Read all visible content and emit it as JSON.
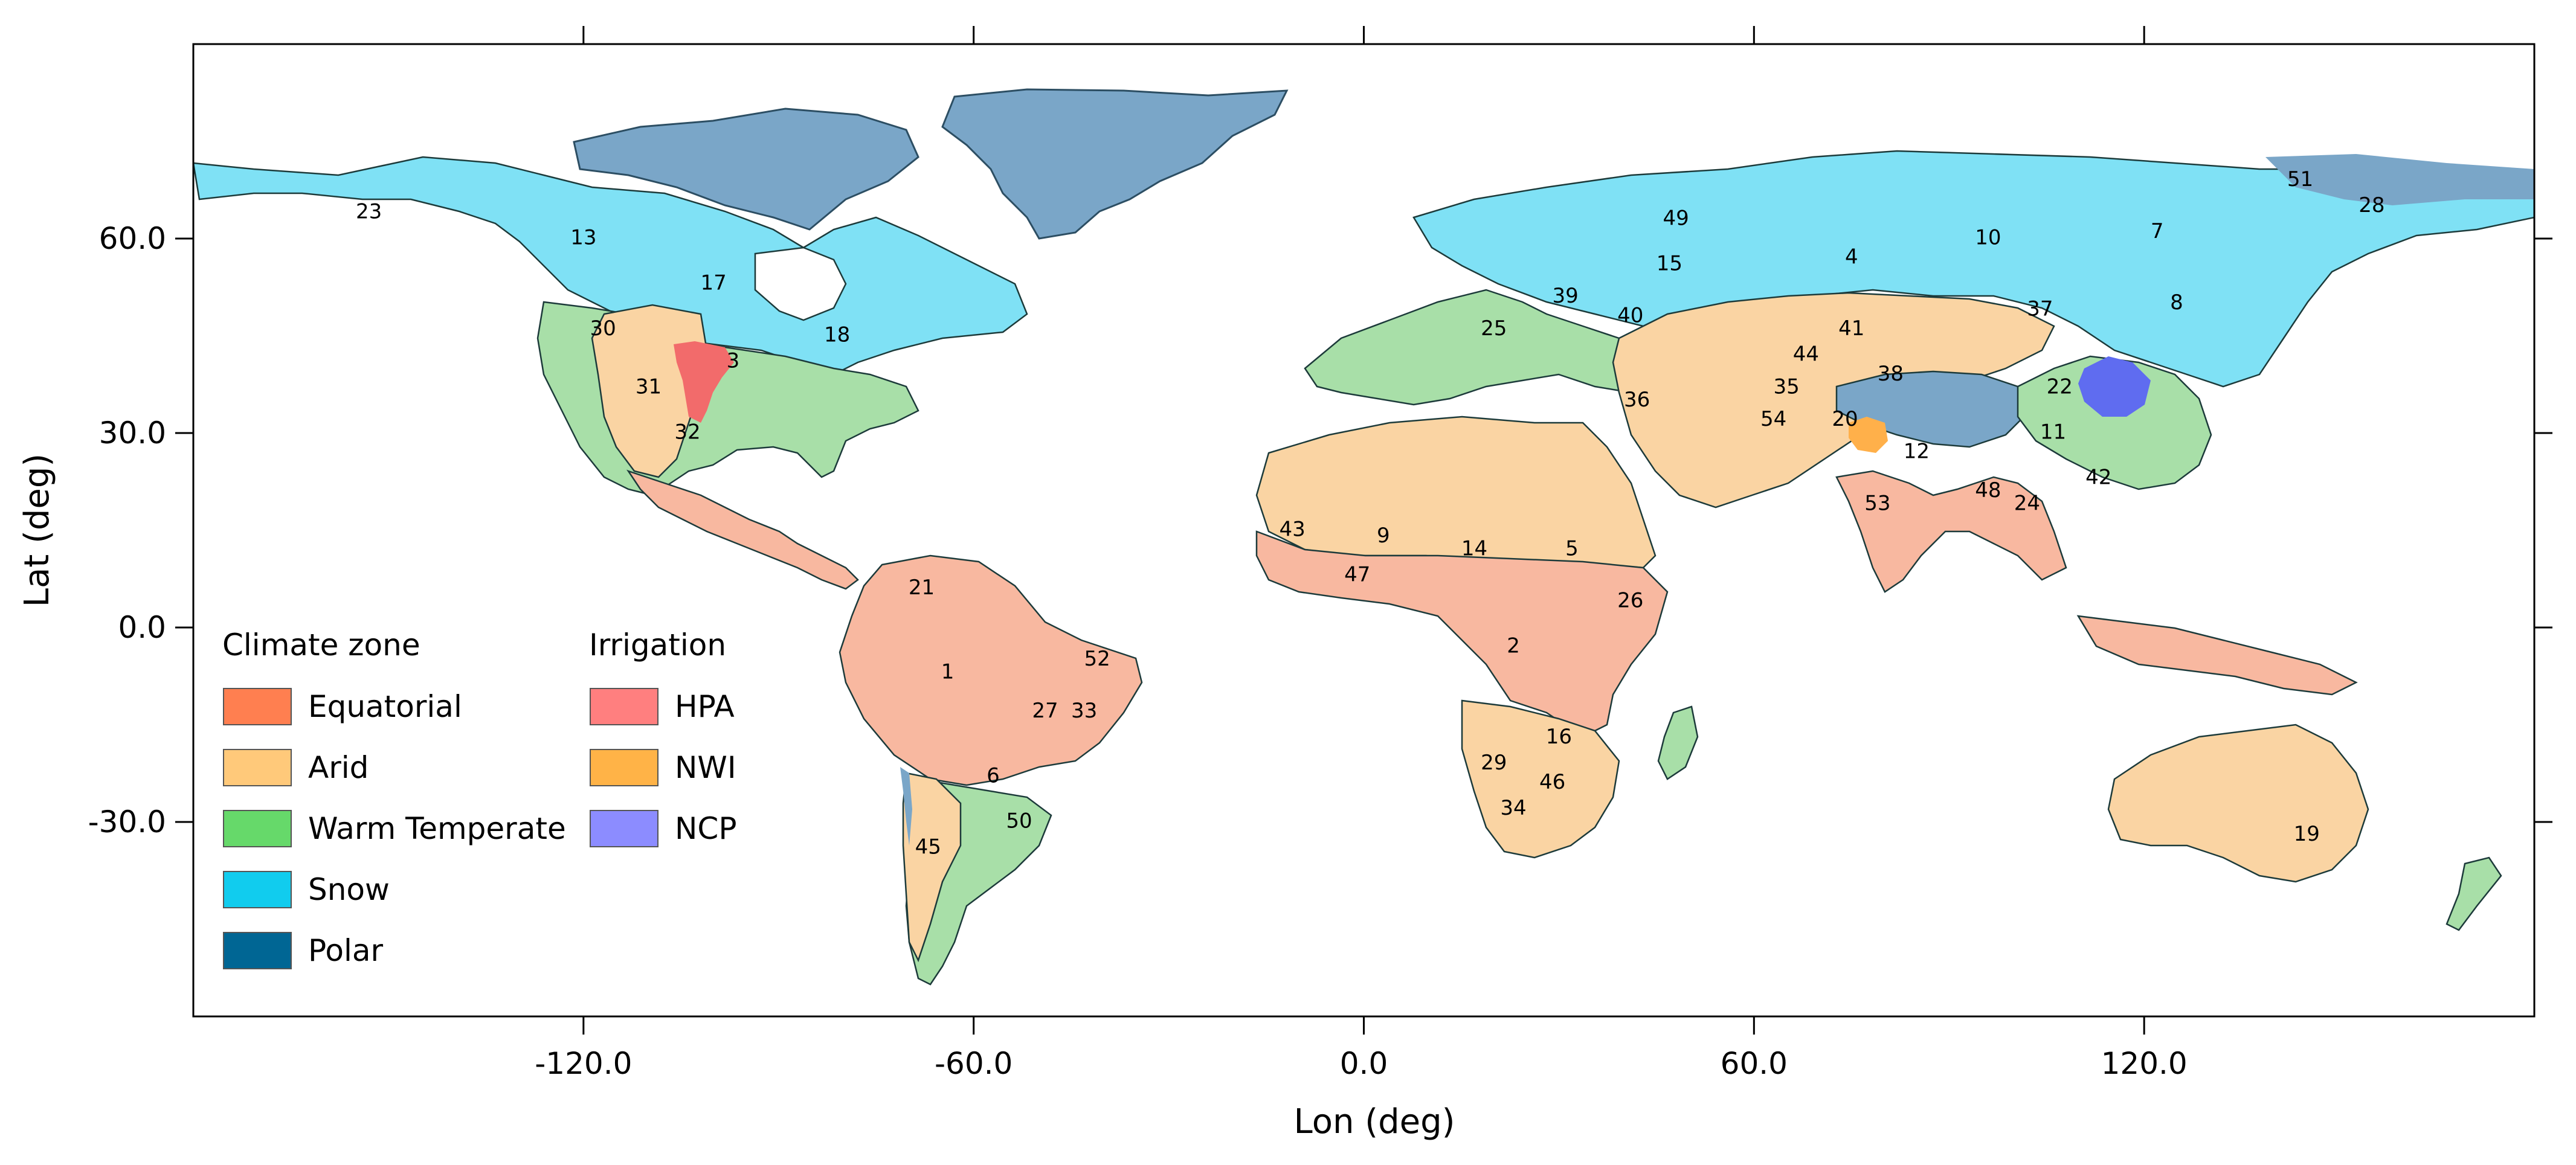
{
  "map": {
    "x_axis_label": "Lon (deg)",
    "y_axis_label": "Lat (deg)",
    "x_ticks": [
      {
        "value": -120,
        "label": "-120.0"
      },
      {
        "value": -60,
        "label": "-60.0"
      },
      {
        "value": 0,
        "label": "0.0"
      },
      {
        "value": 60,
        "label": "60.0"
      },
      {
        "value": 120,
        "label": "120.0"
      }
    ],
    "y_ticks": [
      {
        "value": 60,
        "label": "60.0"
      },
      {
        "value": 30,
        "label": "30.0"
      },
      {
        "value": 0,
        "label": "0.0"
      },
      {
        "value": -30,
        "label": "-30.0"
      }
    ],
    "lon_range": [
      -180,
      180
    ],
    "lat_range": [
      -60,
      90
    ]
  },
  "legend": {
    "climate_title": "Climate zone",
    "climate_items": [
      {
        "label": "Equatorial",
        "color": "#ff7f50"
      },
      {
        "label": "Arid",
        "color": "#ffc97a"
      },
      {
        "label": "Warm Temperate",
        "color": "#66d96a"
      },
      {
        "label": "Snow",
        "color": "#11ccee"
      },
      {
        "label": "Polar",
        "color": "#006694"
      }
    ],
    "irrigation_title": "Irrigation",
    "irrigation_items": [
      {
        "label": "HPA",
        "color": "#ff7f7f"
      },
      {
        "label": "NWI",
        "color": "#ffb347"
      },
      {
        "label": "NCP",
        "color": "#8c8cff"
      }
    ]
  },
  "colors": {
    "equatorial_fill": "#f8b8a0",
    "arid_fill": "#fad4a3",
    "warm_temperate_fill": "#a8dfa8",
    "snow_fill": "#7fe1f5",
    "polar_fill": "#7aa6c8",
    "hpa_fill": "#f26b6b",
    "nwi_fill": "#ffb04a",
    "ncp_fill": "#5f6cf0"
  },
  "basin_labels": [
    {
      "text": "23",
      "lon": -153,
      "lat": 64
    },
    {
      "text": "13",
      "lon": -120,
      "lat": 60
    },
    {
      "text": "17",
      "lon": -100,
      "lat": 53
    },
    {
      "text": "18",
      "lon": -81,
      "lat": 45
    },
    {
      "text": "30",
      "lon": -117,
      "lat": 46
    },
    {
      "text": "3",
      "lon": -97,
      "lat": 41
    },
    {
      "text": "31",
      "lon": -110,
      "lat": 37
    },
    {
      "text": "32",
      "lon": -104,
      "lat": 30
    },
    {
      "text": "21",
      "lon": -68,
      "lat": 6
    },
    {
      "text": "1",
      "lon": -64,
      "lat": -7
    },
    {
      "text": "52",
      "lon": -41,
      "lat": -5
    },
    {
      "text": "27",
      "lon": -49,
      "lat": -13
    },
    {
      "text": "33",
      "lon": -43,
      "lat": -13
    },
    {
      "text": "6",
      "lon": -57,
      "lat": -23
    },
    {
      "text": "50",
      "lon": -53,
      "lat": -30
    },
    {
      "text": "45",
      "lon": -67,
      "lat": -34
    },
    {
      "text": "49",
      "lon": 48,
      "lat": 63
    },
    {
      "text": "15",
      "lon": 47,
      "lat": 56
    },
    {
      "text": "39",
      "lon": 31,
      "lat": 51
    },
    {
      "text": "40",
      "lon": 41,
      "lat": 48
    },
    {
      "text": "25",
      "lon": 20,
      "lat": 46
    },
    {
      "text": "36",
      "lon": 42,
      "lat": 35
    },
    {
      "text": "4",
      "lon": 75,
      "lat": 57
    },
    {
      "text": "10",
      "lon": 96,
      "lat": 60
    },
    {
      "text": "7",
      "lon": 122,
      "lat": 61
    },
    {
      "text": "8",
      "lon": 125,
      "lat": 50
    },
    {
      "text": "37",
      "lon": 104,
      "lat": 49
    },
    {
      "text": "41",
      "lon": 75,
      "lat": 46
    },
    {
      "text": "44",
      "lon": 68,
      "lat": 42
    },
    {
      "text": "38",
      "lon": 81,
      "lat": 39
    },
    {
      "text": "35",
      "lon": 65,
      "lat": 37
    },
    {
      "text": "54",
      "lon": 63,
      "lat": 32
    },
    {
      "text": "20",
      "lon": 74,
      "lat": 32
    },
    {
      "text": "22",
      "lon": 107,
      "lat": 37
    },
    {
      "text": "12",
      "lon": 85,
      "lat": 27
    },
    {
      "text": "11",
      "lon": 106,
      "lat": 30
    },
    {
      "text": "42",
      "lon": 113,
      "lat": 23
    },
    {
      "text": "48",
      "lon": 96,
      "lat": 21
    },
    {
      "text": "24",
      "lon": 102,
      "lat": 19
    },
    {
      "text": "53",
      "lon": 79,
      "lat": 19
    },
    {
      "text": "51",
      "lon": 144,
      "lat": 69
    },
    {
      "text": "28",
      "lon": 155,
      "lat": 65
    },
    {
      "text": "43",
      "lon": -11,
      "lat": 15
    },
    {
      "text": "9",
      "lon": 3,
      "lat": 14
    },
    {
      "text": "47",
      "lon": -1,
      "lat": 8
    },
    {
      "text": "14",
      "lon": 17,
      "lat": 12
    },
    {
      "text": "5",
      "lon": 32,
      "lat": 12
    },
    {
      "text": "26",
      "lon": 41,
      "lat": 4
    },
    {
      "text": "2",
      "lon": 23,
      "lat": -3
    },
    {
      "text": "16",
      "lon": 30,
      "lat": -17
    },
    {
      "text": "29",
      "lon": 20,
      "lat": -21
    },
    {
      "text": "46",
      "lon": 29,
      "lat": -24
    },
    {
      "text": "34",
      "lon": 23,
      "lat": -28
    },
    {
      "text": "19",
      "lon": 145,
      "lat": -32
    }
  ]
}
